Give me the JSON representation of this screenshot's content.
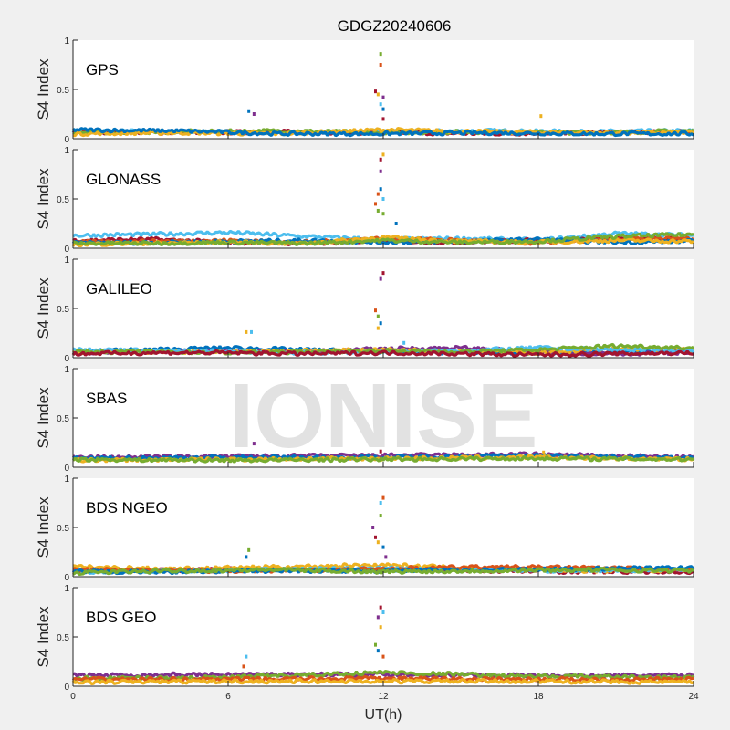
{
  "chart_data": {
    "type": "scatter",
    "title": "GDGZ20240606",
    "xlabel": "UT(h)",
    "ylabel": "S4 Index",
    "xlim": [
      0,
      24
    ],
    "ylim": [
      0,
      1
    ],
    "xticks": [
      "0",
      "6",
      "12",
      "18",
      "24"
    ],
    "yticks": [
      "0",
      "0.5",
      "1"
    ],
    "watermark": "IONISE",
    "colors": [
      "#0072BD",
      "#D95319",
      "#EDB120",
      "#7E2F8E",
      "#77AC30",
      "#4DBEEE",
      "#A2142F"
    ],
    "panels": [
      {
        "name": "GPS",
        "baseline": [
          {
            "color": "#4DBEEE",
            "x": [
              0,
              4,
              8,
              12,
              16,
              20,
              24
            ],
            "y": [
              0.08,
              0.07,
              0.06,
              0.07,
              0.08,
              0.07,
              0.08
            ]
          },
          {
            "color": "#A2142F",
            "x": [
              0,
              4,
              8,
              12,
              16,
              20,
              24
            ],
            "y": [
              0.07,
              0.06,
              0.07,
              0.06,
              0.05,
              0.06,
              0.07
            ]
          },
          {
            "color": "#77AC30",
            "x": [
              0,
              4,
              8,
              12,
              16,
              20,
              24
            ],
            "y": [
              0.06,
              0.07,
              0.08,
              0.06,
              0.07,
              0.06,
              0.08
            ]
          },
          {
            "color": "#EDB120",
            "x": [
              0,
              4,
              8,
              12,
              16,
              20,
              24
            ],
            "y": [
              0.05,
              0.06,
              0.05,
              0.09,
              0.07,
              0.06,
              0.06
            ]
          },
          {
            "color": "#0072BD",
            "x": [
              0,
              4,
              8,
              12,
              16,
              20,
              24
            ],
            "y": [
              0.09,
              0.08,
              0.05,
              0.05,
              0.06,
              0.05,
              0.05
            ]
          }
        ],
        "spikes": [
          [
            6.8,
            0.28
          ],
          [
            7.0,
            0.25
          ],
          [
            11.7,
            0.48
          ],
          [
            11.8,
            0.45
          ],
          [
            11.9,
            0.35
          ],
          [
            11.9,
            0.75
          ],
          [
            11.9,
            0.86
          ],
          [
            12.0,
            0.3
          ],
          [
            12.0,
            0.42
          ],
          [
            12.0,
            0.2
          ],
          [
            18.1,
            0.23
          ]
        ]
      },
      {
        "name": "GLONASS",
        "baseline": [
          {
            "color": "#4DBEEE",
            "x": [
              0,
              3,
              6,
              9,
              12,
              15,
              18,
              21,
              24
            ],
            "y": [
              0.13,
              0.14,
              0.16,
              0.12,
              0.09,
              0.1,
              0.08,
              0.15,
              0.13
            ]
          },
          {
            "color": "#A2142F",
            "x": [
              0,
              3,
              6,
              9,
              12,
              15,
              18,
              21,
              24
            ],
            "y": [
              0.08,
              0.09,
              0.06,
              0.05,
              0.07,
              0.06,
              0.08,
              0.1,
              0.09
            ]
          },
          {
            "color": "#D95319",
            "x": [
              0,
              3,
              6,
              9,
              12,
              15,
              18,
              21,
              24
            ],
            "y": [
              0.06,
              0.07,
              0.08,
              0.06,
              0.1,
              0.08,
              0.05,
              0.09,
              0.1
            ]
          },
          {
            "color": "#0072BD",
            "x": [
              0,
              3,
              6,
              9,
              12,
              15,
              18,
              21,
              24
            ],
            "y": [
              0.05,
              0.06,
              0.07,
              0.08,
              0.06,
              0.07,
              0.09,
              0.06,
              0.07
            ]
          },
          {
            "color": "#EDB120",
            "x": [
              0,
              3,
              6,
              9,
              12,
              15,
              18,
              21,
              24
            ],
            "y": [
              0.04,
              0.05,
              0.06,
              0.05,
              0.11,
              0.07,
              0.06,
              0.08,
              0.07
            ]
          },
          {
            "color": "#77AC30",
            "x": [
              0,
              3,
              6,
              9,
              12,
              15,
              18,
              21,
              24
            ],
            "y": [
              0.05,
              0.05,
              0.06,
              0.05,
              0.08,
              0.06,
              0.07,
              0.12,
              0.14
            ]
          }
        ],
        "spikes": [
          [
            11.7,
            0.45
          ],
          [
            11.8,
            0.38
          ],
          [
            11.9,
            0.6
          ],
          [
            11.9,
            0.78
          ],
          [
            11.9,
            0.9
          ],
          [
            12.0,
            0.95
          ],
          [
            12.0,
            0.5
          ],
          [
            11.8,
            0.55
          ],
          [
            12.0,
            0.35
          ],
          [
            12.5,
            0.25
          ]
        ]
      },
      {
        "name": "GALILEO",
        "baseline": [
          {
            "color": "#0072BD",
            "x": [
              0,
              3,
              6,
              9,
              12,
              15,
              18,
              21,
              24
            ],
            "y": [
              0.07,
              0.08,
              0.1,
              0.08,
              0.06,
              0.05,
              0.05,
              0.06,
              0.07
            ]
          },
          {
            "color": "#7E2F8E",
            "x": [
              0,
              3,
              6,
              9,
              12,
              15,
              18,
              21,
              24
            ],
            "y": [
              0.05,
              0.06,
              0.07,
              0.06,
              0.09,
              0.1,
              0.06,
              0.04,
              0.05
            ]
          },
          {
            "color": "#EDB120",
            "x": [
              0,
              3,
              6,
              9,
              12,
              15,
              18,
              21,
              24
            ],
            "y": [
              0.06,
              0.05,
              0.06,
              0.07,
              0.08,
              0.07,
              0.05,
              0.09,
              0.08
            ]
          },
          {
            "color": "#4DBEEE",
            "x": [
              0,
              3,
              6,
              9,
              12,
              15,
              18,
              21,
              24
            ],
            "y": [
              0.08,
              0.07,
              0.06,
              0.05,
              0.06,
              0.07,
              0.1,
              0.08,
              0.07
            ]
          },
          {
            "color": "#77AC30",
            "x": [
              0,
              3,
              6,
              9,
              12,
              15,
              18,
              21,
              24
            ],
            "y": [
              0.06,
              0.06,
              0.05,
              0.06,
              0.07,
              0.06,
              0.08,
              0.12,
              0.1
            ]
          },
          {
            "color": "#A2142F",
            "x": [
              0,
              3,
              6,
              9,
              12,
              15,
              18,
              21,
              24
            ],
            "y": [
              0.04,
              0.05,
              0.05,
              0.04,
              0.05,
              0.04,
              0.03,
              0.04,
              0.05
            ]
          }
        ],
        "spikes": [
          [
            6.7,
            0.26
          ],
          [
            6.9,
            0.26
          ],
          [
            11.7,
            0.48
          ],
          [
            11.8,
            0.42
          ],
          [
            11.9,
            0.35
          ],
          [
            11.9,
            0.8
          ],
          [
            12.0,
            0.86
          ],
          [
            11.8,
            0.3
          ],
          [
            12.8,
            0.15
          ]
        ]
      },
      {
        "name": "SBAS",
        "baseline": [
          {
            "color": "#7E2F8E",
            "x": [
              0,
              6,
              12,
              18,
              24
            ],
            "y": [
              0.1,
              0.11,
              0.12,
              0.13,
              0.1
            ]
          },
          {
            "color": "#0072BD",
            "x": [
              0,
              6,
              12,
              18,
              24
            ],
            "y": [
              0.09,
              0.1,
              0.1,
              0.12,
              0.09
            ]
          },
          {
            "color": "#EDB120",
            "x": [
              0,
              6,
              12,
              18,
              24
            ],
            "y": [
              0.07,
              0.08,
              0.09,
              0.1,
              0.08
            ]
          },
          {
            "color": "#77AC30",
            "x": [
              0,
              6,
              12,
              18,
              24
            ],
            "y": [
              0.08,
              0.07,
              0.08,
              0.09,
              0.08
            ]
          }
        ],
        "spikes": [
          [
            7.0,
            0.24
          ],
          [
            11.9,
            0.16
          ],
          [
            18.2,
            0.15
          ]
        ]
      },
      {
        "name": "BDS NGEO",
        "baseline": [
          {
            "color": "#A2142F",
            "x": [
              0,
              4,
              8,
              12,
              16,
              20,
              24
            ],
            "y": [
              0.06,
              0.07,
              0.08,
              0.07,
              0.06,
              0.05,
              0.05
            ]
          },
          {
            "color": "#EDB120",
            "x": [
              0,
              4,
              8,
              12,
              16,
              20,
              24
            ],
            "y": [
              0.1,
              0.08,
              0.1,
              0.12,
              0.08,
              0.06,
              0.07
            ]
          },
          {
            "color": "#4DBEEE",
            "x": [
              0,
              4,
              8,
              12,
              16,
              20,
              24
            ],
            "y": [
              0.05,
              0.06,
              0.07,
              0.09,
              0.07,
              0.06,
              0.08
            ]
          },
          {
            "color": "#D95319",
            "x": [
              0,
              4,
              8,
              12,
              16,
              20,
              24
            ],
            "y": [
              0.07,
              0.06,
              0.06,
              0.08,
              0.1,
              0.09,
              0.07
            ]
          },
          {
            "color": "#0072BD",
            "x": [
              0,
              4,
              8,
              12,
              16,
              20,
              24
            ],
            "y": [
              0.05,
              0.05,
              0.06,
              0.06,
              0.07,
              0.08,
              0.09
            ]
          },
          {
            "color": "#77AC30",
            "x": [
              0,
              4,
              8,
              12,
              16,
              20,
              24
            ],
            "y": [
              0.04,
              0.06,
              0.07,
              0.05,
              0.06,
              0.07,
              0.06
            ]
          }
        ],
        "spikes": [
          [
            6.8,
            0.27
          ],
          [
            6.7,
            0.2
          ],
          [
            11.6,
            0.5
          ],
          [
            11.7,
            0.4
          ],
          [
            11.8,
            0.35
          ],
          [
            11.9,
            0.75
          ],
          [
            12.0,
            0.8
          ],
          [
            11.9,
            0.62
          ],
          [
            12.0,
            0.3
          ],
          [
            12.1,
            0.2
          ]
        ]
      },
      {
        "name": "BDS GEO",
        "baseline": [
          {
            "color": "#7E2F8E",
            "x": [
              0,
              6,
              12,
              18,
              24
            ],
            "y": [
              0.11,
              0.12,
              0.12,
              0.11,
              0.11
            ]
          },
          {
            "color": "#77AC30",
            "x": [
              0,
              6,
              12,
              18,
              24
            ],
            "y": [
              0.08,
              0.09,
              0.14,
              0.1,
              0.09
            ]
          },
          {
            "color": "#D95319",
            "x": [
              0,
              6,
              12,
              18,
              24
            ],
            "y": [
              0.07,
              0.07,
              0.08,
              0.07,
              0.07
            ]
          },
          {
            "color": "#EDB120",
            "x": [
              0,
              6,
              12,
              18,
              24
            ],
            "y": [
              0.04,
              0.05,
              0.05,
              0.05,
              0.04
            ]
          }
        ],
        "spikes": [
          [
            6.7,
            0.3
          ],
          [
            6.6,
            0.2
          ],
          [
            11.7,
            0.42
          ],
          [
            11.8,
            0.36
          ],
          [
            11.8,
            0.7
          ],
          [
            11.9,
            0.8
          ],
          [
            11.9,
            0.6
          ],
          [
            12.0,
            0.75
          ],
          [
            12.0,
            0.3
          ]
        ]
      }
    ]
  }
}
